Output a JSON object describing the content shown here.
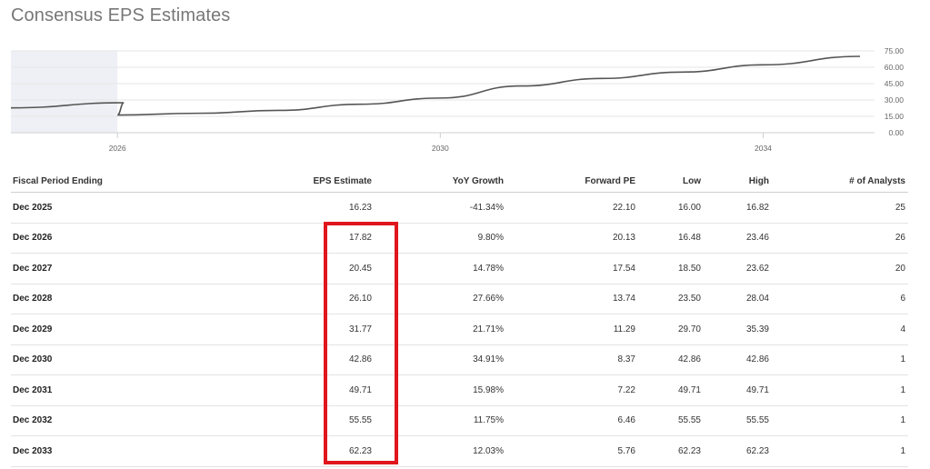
{
  "page": {
    "title": "Consensus EPS Estimates"
  },
  "chart_data": {
    "type": "line",
    "x": [
      2024.5,
      2025.9,
      2026,
      2027,
      2028,
      2029,
      2030,
      2031,
      2032,
      2033,
      2034,
      2035.2
    ],
    "values": [
      22.8,
      27.5,
      16.23,
      17.82,
      20.45,
      26.1,
      31.77,
      42.86,
      49.71,
      55.55,
      62.23,
      70.0
    ],
    "shaded_region_end": 2026,
    "xlim": [
      2024.5,
      2035.2
    ],
    "ylim": [
      0,
      75
    ],
    "y_ticks": [
      "75.00",
      "60.00",
      "45.00",
      "30.00",
      "15.00",
      "0.00"
    ],
    "x_ticks": [
      "2026",
      "2030",
      "2034"
    ],
    "line_color": "#555555",
    "shade_color": "#eef0f5"
  },
  "table": {
    "headers": [
      "Fiscal Period Ending",
      "EPS Estimate",
      "YoY Growth",
      "Forward PE",
      "Low",
      "High",
      "# of Analysts"
    ],
    "rows": [
      [
        "Dec 2025",
        "16.23",
        "-41.34%",
        "22.10",
        "16.00",
        "16.82",
        "25"
      ],
      [
        "Dec 2026",
        "17.82",
        "9.80%",
        "20.13",
        "16.48",
        "23.46",
        "26"
      ],
      [
        "Dec 2027",
        "20.45",
        "14.78%",
        "17.54",
        "18.50",
        "23.62",
        "20"
      ],
      [
        "Dec 2028",
        "26.10",
        "27.66%",
        "13.74",
        "23.50",
        "28.04",
        "6"
      ],
      [
        "Dec 2029",
        "31.77",
        "21.71%",
        "11.29",
        "29.70",
        "35.39",
        "4"
      ],
      [
        "Dec 2030",
        "42.86",
        "34.91%",
        "8.37",
        "42.86",
        "42.86",
        "1"
      ],
      [
        "Dec 2031",
        "49.71",
        "15.98%",
        "7.22",
        "49.71",
        "49.71",
        "1"
      ],
      [
        "Dec 2032",
        "55.55",
        "11.75%",
        "6.46",
        "55.55",
        "55.55",
        "1"
      ],
      [
        "Dec 2033",
        "62.23",
        "12.03%",
        "5.76",
        "62.23",
        "62.23",
        "1"
      ]
    ]
  },
  "highlight_color": "#e0161c"
}
